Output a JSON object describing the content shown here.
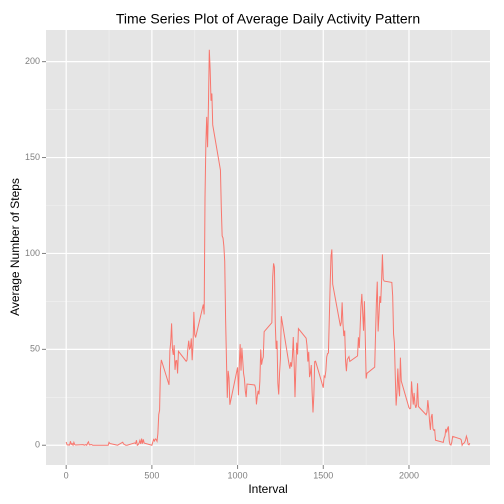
{
  "chart_data": {
    "type": "line",
    "title": "Time Series Plot of Average Daily Activity Pattern",
    "xlabel": "Interval",
    "ylabel": "Average Number of Steps",
    "color": "#F8766D",
    "x": [
      0,
      5,
      10,
      15,
      20,
      25,
      30,
      35,
      40,
      45,
      50,
      55,
      100,
      105,
      110,
      115,
      120,
      125,
      130,
      135,
      140,
      145,
      150,
      155,
      200,
      230,
      245,
      250,
      255,
      300,
      330,
      335,
      340,
      345,
      350,
      355,
      400,
      405,
      410,
      415,
      420,
      425,
      430,
      435,
      440,
      445,
      450,
      455,
      500,
      505,
      510,
      515,
      520,
      525,
      530,
      535,
      540,
      545,
      550,
      555,
      600,
      605,
      610,
      615,
      620,
      625,
      630,
      635,
      640,
      645,
      650,
      655,
      700,
      705,
      710,
      715,
      720,
      725,
      730,
      735,
      740,
      745,
      750,
      755,
      800,
      805,
      810,
      815,
      820,
      825,
      830,
      835,
      840,
      845,
      850,
      855,
      900,
      905,
      910,
      915,
      920,
      925,
      930,
      935,
      940,
      945,
      950,
      955,
      1000,
      1005,
      1010,
      1015,
      1020,
      1025,
      1030,
      1035,
      1040,
      1045,
      1050,
      1055,
      1100,
      1105,
      1110,
      1115,
      1120,
      1125,
      1130,
      1135,
      1140,
      1145,
      1150,
      1155,
      1200,
      1205,
      1210,
      1215,
      1220,
      1225,
      1230,
      1235,
      1240,
      1245,
      1250,
      1255,
      1300,
      1305,
      1310,
      1315,
      1320,
      1325,
      1330,
      1335,
      1340,
      1345,
      1350,
      1355,
      1400,
      1405,
      1410,
      1415,
      1420,
      1425,
      1430,
      1435,
      1440,
      1445,
      1450,
      1455,
      1500,
      1505,
      1510,
      1515,
      1520,
      1525,
      1530,
      1535,
      1540,
      1545,
      1550,
      1555,
      1600,
      1605,
      1610,
      1615,
      1620,
      1625,
      1630,
      1635,
      1640,
      1645,
      1650,
      1655,
      1700,
      1705,
      1710,
      1715,
      1720,
      1725,
      1730,
      1735,
      1740,
      1745,
      1750,
      1755,
      1800,
      1805,
      1810,
      1815,
      1820,
      1825,
      1830,
      1835,
      1840,
      1845,
      1850,
      1855,
      1900,
      1905,
      1910,
      1915,
      1920,
      1925,
      1930,
      1935,
      1940,
      1945,
      1950,
      1955,
      2000,
      2005,
      2010,
      2015,
      2020,
      2025,
      2030,
      2035,
      2040,
      2045,
      2050,
      2055,
      2100,
      2105,
      2110,
      2115,
      2120,
      2125,
      2130,
      2135,
      2140,
      2145,
      2150,
      2155,
      2200,
      2205,
      2210,
      2215,
      2220,
      2225,
      2230,
      2235,
      2240,
      2245,
      2250,
      2255,
      2300,
      2305,
      2310,
      2315,
      2320,
      2325,
      2330,
      2335,
      2340,
      2345,
      2350,
      2355
    ],
    "values": [
      1.7,
      0.3,
      0.1,
      0.2,
      0.1,
      2.1,
      0.5,
      0.9,
      0,
      1.5,
      0.3,
      0.1,
      0.3,
      0,
      0.2,
      0.3,
      0,
      1.1,
      1.8,
      0.2,
      0.2,
      0.4,
      0.3,
      0,
      0,
      0,
      0,
      1.5,
      0.9,
      0,
      1.6,
      0.6,
      0.5,
      0.1,
      0,
      0,
      1.2,
      0.9,
      2.6,
      0,
      0.3,
      1.1,
      2.5,
      0.7,
      3.5,
      0.8,
      3.1,
      1.1,
      0,
      1.6,
      3.0,
      2.2,
      3.3,
      3.0,
      2.1,
      6.1,
      16.0,
      18.3,
      39.5,
      44.5,
      31.5,
      49.3,
      53.8,
      63.5,
      50.0,
      47.1,
      52.2,
      39.3,
      44.0,
      44.2,
      37.4,
      49.0,
      43.8,
      44.4,
      50.5,
      54.5,
      49.9,
      51.0,
      55.7,
      44.3,
      52.3,
      69.5,
      57.8,
      56.2,
      73.4,
      68.2,
      129.4,
      157.5,
      171.2,
      155.4,
      177.3,
      206.2,
      195.9,
      179.6,
      183.4,
      167.0,
      143.5,
      124.0,
      109.1,
      108.1,
      103.7,
      95.9,
      66.2,
      45.2,
      24.8,
      38.8,
      35.0,
      21.1,
      40.6,
      26.1,
      42.4,
      52.7,
      38.9,
      50.8,
      44.3,
      37.4,
      34.7,
      28.3,
      25.1,
      31.9,
      31.4,
      29.7,
      21.3,
      25.5,
      28.4,
      26.5,
      33.4,
      49.98,
      42.0,
      44.6,
      46.0,
      59.2,
      63.9,
      87.7,
      94.8,
      92.8,
      63.4,
      50.2,
      54.5,
      32.4,
      26.5,
      37.7,
      45.1,
      67.3,
      42.3,
      39.9,
      43.3,
      40.98,
      46.2,
      56.4,
      42.8,
      25.1,
      40.0,
      53.5,
      47.3,
      60.8,
      55.8,
      51.96,
      43.6,
      48.7,
      35.5,
      37.5,
      41.8,
      27.5,
      17.1,
      26.1,
      43.6,
      43.8,
      30.0,
      36.1,
      35.5,
      38.8,
      46.0,
      47.8,
      48.1,
      65.3,
      82.9,
      98.7,
      102.1,
      83.96,
      62.1,
      64.1,
      74.5,
      63.2,
      56.9,
      59.8,
      43.9,
      38.6,
      44.7,
      45.5,
      46.2,
      43.7,
      46.6,
      56.3,
      50.7,
      61.2,
      72.7,
      78.9,
      68.9,
      59.7,
      75.1,
      56.5,
      34.8,
      37.5,
      40.7,
      58.0,
      74.7,
      85.3,
      59.3,
      67.8,
      77.7,
      74.2,
      85.3,
      99.5,
      86.6,
      85.6,
      84.9,
      77.8,
      58.0,
      53.4,
      36.3,
      20.7,
      27.4,
      40.0,
      30.2,
      25.5,
      45.7,
      33.5,
      19.6,
      19.0,
      19.3,
      33.3,
      26.8,
      21.2,
      27.3,
      21.3,
      19.5,
      21.3,
      32.3,
      20.2,
      15.9,
      17.2,
      23.5,
      19.2,
      12.5,
      8.0,
      14.7,
      16.3,
      8.7,
      7.8,
      8.1,
      2.6,
      1.5,
      3.7,
      4.8,
      8.5,
      7.1,
      8.7,
      9.8,
      2.2,
      0.3,
      0.1,
      1.6,
      4.6,
      3.3,
      2.8,
      0,
      0.8,
      1.0,
      1.6,
      2.6,
      4.7,
      3.3,
      0.6,
      0.2,
      1.1
    ],
    "xlim": [
      -117.75,
      2472.75
    ],
    "ylim": [
      -10.3,
      216.5
    ],
    "xticks": [
      0,
      500,
      1000,
      1500,
      2000
    ],
    "yticks": [
      0,
      50,
      100,
      150,
      200
    ],
    "xminor": [
      250,
      750,
      1250,
      1750,
      2250
    ],
    "yminor": [
      25,
      75,
      125,
      175
    ],
    "grid": true
  }
}
